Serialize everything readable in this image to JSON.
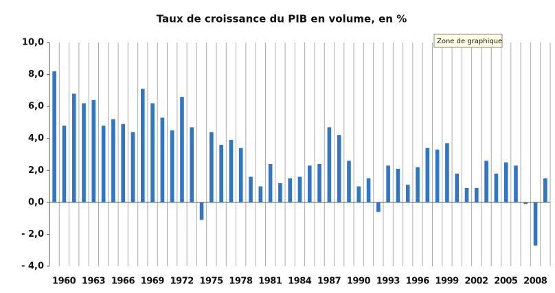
{
  "chart_data": {
    "type": "bar",
    "title": "Taux de croissance du PIB en volume, en %",
    "tooltip": "Zone de graphique",
    "categories": [
      "1960",
      null,
      null,
      "1963",
      null,
      null,
      "1966",
      null,
      null,
      "1969",
      null,
      null,
      "1972",
      null,
      null,
      "1975",
      null,
      null,
      "1978",
      null,
      null,
      "1981",
      null,
      null,
      "1984",
      null,
      null,
      "1987",
      null,
      null,
      "1990",
      null,
      null,
      "1993",
      null,
      null,
      "1996",
      null,
      null,
      "1999",
      null,
      null,
      "2002",
      null,
      null,
      "2005",
      null,
      null,
      "2008",
      null,
      null
    ],
    "values": [
      8.2,
      4.8,
      6.8,
      6.2,
      6.4,
      4.8,
      5.2,
      4.9,
      4.4,
      7.1,
      6.2,
      5.3,
      4.5,
      6.6,
      4.7,
      -1.1,
      4.4,
      3.6,
      3.9,
      3.4,
      1.6,
      1.0,
      2.4,
      1.2,
      1.5,
      1.6,
      2.3,
      2.4,
      4.7,
      4.2,
      2.6,
      1.0,
      1.5,
      -0.6,
      2.3,
      2.1,
      1.1,
      2.2,
      3.4,
      3.3,
      3.7,
      1.8,
      0.9,
      0.9,
      2.6,
      1.8,
      2.5,
      2.3,
      -0.1,
      -2.7,
      1.5
    ],
    "color": "#2f75c8",
    "ylim": [
      -4,
      10
    ],
    "yticks": [
      {
        "value": -4,
        "label": "- 4,0"
      },
      {
        "value": -2,
        "label": "- 2,0"
      },
      {
        "value": 0,
        "label": "0,0"
      },
      {
        "value": 2,
        "label": "2,0"
      },
      {
        "value": 4,
        "label": "4,0"
      },
      {
        "value": 6,
        "label": "6,0"
      },
      {
        "value": 8,
        "label": "8,0"
      },
      {
        "value": 10,
        "label": "10,0"
      }
    ],
    "grid": true
  }
}
